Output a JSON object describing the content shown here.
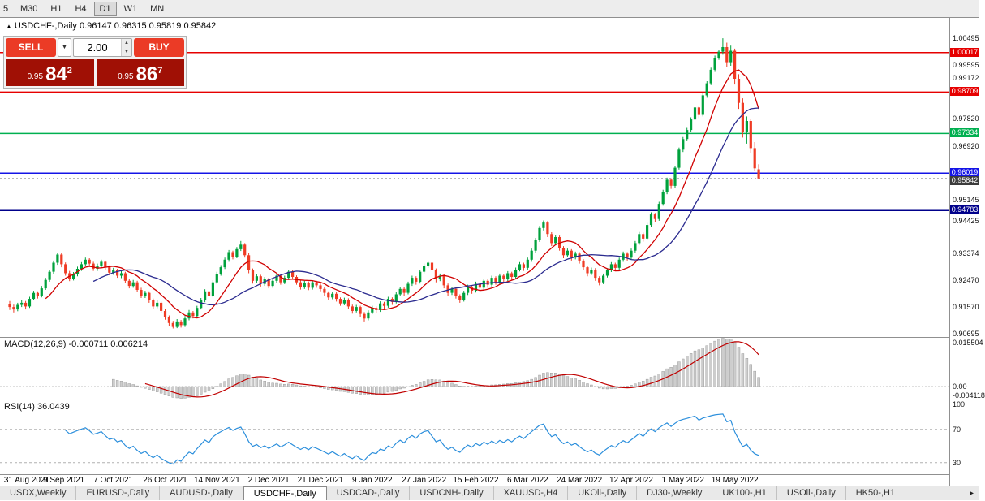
{
  "colors": {
    "candle_up": "#00a13c",
    "candle_down": "#ef3b24",
    "ma_fast": "#d00000",
    "ma_slow": "#2b2b8f",
    "macd_hist": "#cdcdcd",
    "macd_hist_stroke": "#8f8f8f",
    "macd_signal": "#c00000",
    "rsi_line": "#2c8fdc",
    "current_price_bg": "#3c3c3c",
    "button_red": "#eb3b26",
    "price_box_red": "#a01005"
  },
  "toolbar": {
    "timeframes": [
      {
        "label": "5",
        "active": false
      },
      {
        "label": "M30",
        "active": false
      },
      {
        "label": "H1",
        "active": false
      },
      {
        "label": "H4",
        "active": false
      },
      {
        "label": "D1",
        "active": true
      },
      {
        "label": "W1",
        "active": false
      },
      {
        "label": "MN",
        "active": false
      }
    ]
  },
  "chart": {
    "symbol": "USDCHF-,Daily",
    "ohlc": "0.96147 0.96315 0.95819 0.95842",
    "marker": "▲"
  },
  "trade_panel": {
    "sell_label": "SELL",
    "buy_label": "BUY",
    "lot": "2.00",
    "dropdown_arrow": "▼",
    "spin_up": "▲",
    "spin_down": "▼",
    "sell_price": {
      "prefix": "0.95",
      "big": "84",
      "sup": "2"
    },
    "buy_price": {
      "prefix": "0.95",
      "big": "86",
      "sup": "7"
    }
  },
  "price_axis": {
    "scale": [
      "1.00495",
      "0.99595",
      "0.99172",
      "0.97820",
      "0.96920",
      "0.95145",
      "0.94425",
      "0.93374",
      "0.92470",
      "0.91570",
      "0.90695"
    ],
    "current": {
      "label": "0.95842",
      "value": 0.95842
    }
  },
  "hlines": [
    {
      "value": 1.00017,
      "label": "1.00017",
      "color": "#e60000"
    },
    {
      "value": 0.98709,
      "label": "0.98709",
      "color": "#e60000"
    },
    {
      "value": 0.97334,
      "label": "0.97334",
      "color": "#00b050"
    },
    {
      "value": 0.96019,
      "label": "0.96019",
      "color": "#1414e6"
    },
    {
      "value": 0.94783,
      "label": "0.94783",
      "color": "#00008b"
    }
  ],
  "macd": {
    "name": "MACD(12,26,9)",
    "values": "-0.000711 0.006214",
    "fast": 12,
    "slow": 26,
    "signal": 9,
    "range": [
      -0.0045,
      0.016
    ],
    "axis_labels": [
      {
        "text": "0.015504",
        "value": 0.015504
      },
      {
        "text": "0.00",
        "value": 0
      },
      {
        "text": "-0.004118",
        "value": -0.004118
      }
    ]
  },
  "rsi": {
    "name": "RSI(14)",
    "value_text": "36.0439",
    "period": 14,
    "range": [
      15,
      105
    ],
    "levels": [
      70,
      30
    ],
    "axis_labels": [
      {
        "text": "100",
        "value": 100
      },
      {
        "text": "70",
        "value": 70
      },
      {
        "text": "30",
        "value": 30
      }
    ]
  },
  "tabs": [
    {
      "label": "USDX,Weekly",
      "active": false
    },
    {
      "label": "EURUSD-,Daily",
      "active": false
    },
    {
      "label": "AUDUSD-,Daily",
      "active": false
    },
    {
      "label": "USDCHF-,Daily",
      "active": true
    },
    {
      "label": "USDCAD-,Daily",
      "active": false
    },
    {
      "label": "USDCNH-,Daily",
      "active": false
    },
    {
      "label": "XAUUSD-,H4",
      "active": false
    },
    {
      "label": "UKOil-,Daily",
      "active": false
    },
    {
      "label": "DJ30-,Weekly",
      "active": false
    },
    {
      "label": "UK100-,H1",
      "active": false
    },
    {
      "label": "USOil-,Daily",
      "active": false
    },
    {
      "label": "HK50-,H1",
      "active": false
    }
  ],
  "tab_scroll_arrow": "▸",
  "chart_data": {
    "type": "candlestick",
    "title": "USDCHF-,Daily",
    "ylim": [
      0.9056,
      1.0117
    ],
    "ma_periods": [
      10,
      22
    ],
    "x_labels": [
      "31 Aug 2021",
      "19 Sep 2021",
      "7 Oct 2021",
      "26 Oct 2021",
      "14 Nov 2021",
      "2 Dec 2021",
      "21 Dec 2021",
      "9 Jan 2022",
      "27 Jan 2022",
      "15 Feb 2022",
      "6 Mar 2022",
      "24 Mar 2022",
      "12 Apr 2022",
      "1 May 2022",
      "19 May 2022"
    ],
    "x_label_indices": [
      0,
      13,
      26,
      39,
      52,
      65,
      78,
      91,
      104,
      117,
      130,
      143,
      156,
      169,
      182
    ],
    "candles": [
      [
        0.9168,
        0.9178,
        0.9148,
        0.9158
      ],
      [
        0.9158,
        0.9166,
        0.914,
        0.915
      ],
      [
        0.915,
        0.9172,
        0.9144,
        0.9165
      ],
      [
        0.9165,
        0.918,
        0.9158,
        0.9172
      ],
      [
        0.9172,
        0.9178,
        0.915,
        0.916
      ],
      [
        0.916,
        0.9192,
        0.9155,
        0.9185
      ],
      [
        0.9185,
        0.9212,
        0.918,
        0.9205
      ],
      [
        0.9205,
        0.921,
        0.9186,
        0.9195
      ],
      [
        0.9195,
        0.9228,
        0.919,
        0.922
      ],
      [
        0.922,
        0.9255,
        0.9215,
        0.9248
      ],
      [
        0.9248,
        0.9282,
        0.9242,
        0.9275
      ],
      [
        0.9275,
        0.9312,
        0.9268,
        0.9305
      ],
      [
        0.9305,
        0.9337,
        0.9298,
        0.9332
      ],
      [
        0.9332,
        0.9336,
        0.929,
        0.93
      ],
      [
        0.93,
        0.9306,
        0.9262,
        0.927
      ],
      [
        0.927,
        0.9278,
        0.9244,
        0.9252
      ],
      [
        0.9252,
        0.9274,
        0.9246,
        0.9268
      ],
      [
        0.9268,
        0.9292,
        0.926,
        0.9285
      ],
      [
        0.9285,
        0.9307,
        0.9278,
        0.93
      ],
      [
        0.93,
        0.9322,
        0.9294,
        0.9315
      ],
      [
        0.9315,
        0.932,
        0.9295,
        0.9302
      ],
      [
        0.9302,
        0.9308,
        0.9278,
        0.9285
      ],
      [
        0.9285,
        0.9302,
        0.9278,
        0.9295
      ],
      [
        0.9295,
        0.9315,
        0.9288,
        0.9308
      ],
      [
        0.9308,
        0.9312,
        0.9282,
        0.929
      ],
      [
        0.929,
        0.9296,
        0.9264,
        0.9272
      ],
      [
        0.9272,
        0.9288,
        0.9265,
        0.928
      ],
      [
        0.928,
        0.9285,
        0.9255,
        0.9262
      ],
      [
        0.9262,
        0.9278,
        0.9254,
        0.927
      ],
      [
        0.927,
        0.9275,
        0.9238,
        0.9245
      ],
      [
        0.9245,
        0.9252,
        0.922,
        0.9228
      ],
      [
        0.9228,
        0.9248,
        0.9222,
        0.924
      ],
      [
        0.924,
        0.9245,
        0.9208,
        0.9215
      ],
      [
        0.9215,
        0.9222,
        0.9188,
        0.9195
      ],
      [
        0.9195,
        0.9212,
        0.9188,
        0.9205
      ],
      [
        0.9205,
        0.921,
        0.9172,
        0.918
      ],
      [
        0.918,
        0.9186,
        0.9152,
        0.916
      ],
      [
        0.916,
        0.918,
        0.9154,
        0.9172
      ],
      [
        0.9172,
        0.9176,
        0.9138,
        0.9145
      ],
      [
        0.9145,
        0.9152,
        0.9116,
        0.9125
      ],
      [
        0.9125,
        0.913,
        0.9096,
        0.9105
      ],
      [
        0.9105,
        0.9112,
        0.9087,
        0.9092
      ],
      [
        0.9092,
        0.9118,
        0.9088,
        0.911
      ],
      [
        0.911,
        0.9115,
        0.909,
        0.9098
      ],
      [
        0.9098,
        0.9128,
        0.9092,
        0.912
      ],
      [
        0.912,
        0.9148,
        0.9114,
        0.914
      ],
      [
        0.914,
        0.9145,
        0.912,
        0.9128
      ],
      [
        0.9128,
        0.9162,
        0.9122,
        0.9155
      ],
      [
        0.9155,
        0.9188,
        0.915,
        0.918
      ],
      [
        0.918,
        0.9217,
        0.9174,
        0.921
      ],
      [
        0.921,
        0.9216,
        0.9186,
        0.9195
      ],
      [
        0.9195,
        0.9247,
        0.919,
        0.924
      ],
      [
        0.924,
        0.9275,
        0.9235,
        0.9268
      ],
      [
        0.9268,
        0.9297,
        0.9262,
        0.929
      ],
      [
        0.929,
        0.9322,
        0.9284,
        0.9315
      ],
      [
        0.9315,
        0.9347,
        0.9308,
        0.934
      ],
      [
        0.934,
        0.9345,
        0.9316,
        0.9325
      ],
      [
        0.9325,
        0.9357,
        0.932,
        0.935
      ],
      [
        0.935,
        0.9377,
        0.9344,
        0.9365
      ],
      [
        0.9365,
        0.937,
        0.9322,
        0.933
      ],
      [
        0.933,
        0.9336,
        0.927,
        0.928
      ],
      [
        0.928,
        0.9286,
        0.9236,
        0.9245
      ],
      [
        0.9245,
        0.9268,
        0.9238,
        0.926
      ],
      [
        0.926,
        0.9265,
        0.9226,
        0.9235
      ],
      [
        0.9235,
        0.9258,
        0.9228,
        0.925
      ],
      [
        0.925,
        0.9255,
        0.922,
        0.9228
      ],
      [
        0.9228,
        0.9252,
        0.9222,
        0.9245
      ],
      [
        0.9245,
        0.9269,
        0.9238,
        0.9262
      ],
      [
        0.9262,
        0.9267,
        0.9232,
        0.924
      ],
      [
        0.924,
        0.9262,
        0.9234,
        0.9255
      ],
      [
        0.9255,
        0.9282,
        0.9248,
        0.9275
      ],
      [
        0.9275,
        0.928,
        0.925,
        0.9258
      ],
      [
        0.9258,
        0.9263,
        0.9232,
        0.924
      ],
      [
        0.924,
        0.9246,
        0.9216,
        0.9225
      ],
      [
        0.9225,
        0.9245,
        0.9218,
        0.9238
      ],
      [
        0.9238,
        0.9243,
        0.9214,
        0.9222
      ],
      [
        0.9222,
        0.9247,
        0.9216,
        0.924
      ],
      [
        0.924,
        0.9245,
        0.9222,
        0.923
      ],
      [
        0.923,
        0.9236,
        0.921,
        0.9218
      ],
      [
        0.9218,
        0.9224,
        0.9196,
        0.9205
      ],
      [
        0.9205,
        0.921,
        0.9182,
        0.919
      ],
      [
        0.919,
        0.9209,
        0.9184,
        0.9202
      ],
      [
        0.9202,
        0.9207,
        0.9176,
        0.9185
      ],
      [
        0.9185,
        0.919,
        0.9162,
        0.917
      ],
      [
        0.917,
        0.9189,
        0.9164,
        0.9182
      ],
      [
        0.9182,
        0.9187,
        0.9152,
        0.916
      ],
      [
        0.916,
        0.9166,
        0.9136,
        0.9145
      ],
      [
        0.9145,
        0.9165,
        0.914,
        0.9158
      ],
      [
        0.9158,
        0.9162,
        0.9126,
        0.9135
      ],
      [
        0.9135,
        0.9141,
        0.911,
        0.912
      ],
      [
        0.912,
        0.9147,
        0.9114,
        0.914
      ],
      [
        0.914,
        0.9162,
        0.9134,
        0.9155
      ],
      [
        0.9155,
        0.916,
        0.9138,
        0.9148
      ],
      [
        0.9148,
        0.9177,
        0.9142,
        0.917
      ],
      [
        0.917,
        0.9175,
        0.9152,
        0.9162
      ],
      [
        0.9162,
        0.9192,
        0.9156,
        0.9185
      ],
      [
        0.9185,
        0.919,
        0.9165,
        0.9175
      ],
      [
        0.9175,
        0.9207,
        0.917,
        0.92
      ],
      [
        0.92,
        0.9225,
        0.9194,
        0.9218
      ],
      [
        0.9218,
        0.9223,
        0.9196,
        0.9205
      ],
      [
        0.9205,
        0.9242,
        0.92,
        0.9235
      ],
      [
        0.9235,
        0.9262,
        0.9228,
        0.9255
      ],
      [
        0.9255,
        0.926,
        0.9232,
        0.9242
      ],
      [
        0.9242,
        0.9282,
        0.9236,
        0.9275
      ],
      [
        0.9275,
        0.9302,
        0.927,
        0.9295
      ],
      [
        0.9295,
        0.9312,
        0.9288,
        0.9305
      ],
      [
        0.9305,
        0.931,
        0.927,
        0.928
      ],
      [
        0.928,
        0.9286,
        0.924,
        0.925
      ],
      [
        0.925,
        0.9269,
        0.9244,
        0.9262
      ],
      [
        0.9262,
        0.9267,
        0.922,
        0.923
      ],
      [
        0.923,
        0.9236,
        0.9196,
        0.9205
      ],
      [
        0.9205,
        0.9225,
        0.9198,
        0.9218
      ],
      [
        0.9218,
        0.9223,
        0.9186,
        0.9195
      ],
      [
        0.9195,
        0.92,
        0.9172,
        0.9182
      ],
      [
        0.9182,
        0.9212,
        0.9176,
        0.9205
      ],
      [
        0.9205,
        0.9232,
        0.9198,
        0.9225
      ],
      [
        0.9225,
        0.923,
        0.9202,
        0.9212
      ],
      [
        0.9212,
        0.9242,
        0.9206,
        0.9235
      ],
      [
        0.9235,
        0.924,
        0.9212,
        0.9222
      ],
      [
        0.9222,
        0.9252,
        0.9216,
        0.9245
      ],
      [
        0.9245,
        0.925,
        0.9222,
        0.9232
      ],
      [
        0.9232,
        0.9262,
        0.9226,
        0.9255
      ],
      [
        0.9255,
        0.926,
        0.9232,
        0.924
      ],
      [
        0.924,
        0.9269,
        0.9234,
        0.9262
      ],
      [
        0.9262,
        0.9267,
        0.924,
        0.925
      ],
      [
        0.925,
        0.9277,
        0.9244,
        0.927
      ],
      [
        0.927,
        0.9275,
        0.9248,
        0.9258
      ],
      [
        0.9258,
        0.9289,
        0.9252,
        0.9282
      ],
      [
        0.9282,
        0.9307,
        0.9276,
        0.93
      ],
      [
        0.93,
        0.9305,
        0.9278,
        0.9288
      ],
      [
        0.9288,
        0.9322,
        0.9282,
        0.9315
      ],
      [
        0.9315,
        0.9352,
        0.9308,
        0.9345
      ],
      [
        0.9345,
        0.9387,
        0.9338,
        0.938
      ],
      [
        0.938,
        0.9427,
        0.9374,
        0.942
      ],
      [
        0.942,
        0.9445,
        0.9412,
        0.9438
      ],
      [
        0.9438,
        0.9443,
        0.939,
        0.94
      ],
      [
        0.94,
        0.9406,
        0.936,
        0.937
      ],
      [
        0.937,
        0.9397,
        0.9364,
        0.939
      ],
      [
        0.939,
        0.9395,
        0.9345,
        0.9355
      ],
      [
        0.9355,
        0.936,
        0.932,
        0.933
      ],
      [
        0.933,
        0.9352,
        0.9324,
        0.9345
      ],
      [
        0.9345,
        0.935,
        0.9312,
        0.9322
      ],
      [
        0.9322,
        0.9342,
        0.9316,
        0.9335
      ],
      [
        0.9335,
        0.934,
        0.9302,
        0.9312
      ],
      [
        0.9312,
        0.9317,
        0.928,
        0.929
      ],
      [
        0.929,
        0.9295,
        0.926,
        0.927
      ],
      [
        0.927,
        0.9289,
        0.9264,
        0.9282
      ],
      [
        0.9282,
        0.9287,
        0.9245,
        0.9255
      ],
      [
        0.9255,
        0.926,
        0.923,
        0.924
      ],
      [
        0.924,
        0.9269,
        0.9234,
        0.9262
      ],
      [
        0.9262,
        0.9287,
        0.9256,
        0.928
      ],
      [
        0.928,
        0.9307,
        0.9274,
        0.93
      ],
      [
        0.93,
        0.9305,
        0.9278,
        0.9288
      ],
      [
        0.9288,
        0.9322,
        0.9282,
        0.9315
      ],
      [
        0.9315,
        0.9342,
        0.9308,
        0.9335
      ],
      [
        0.9335,
        0.934,
        0.9312,
        0.9322
      ],
      [
        0.9322,
        0.9352,
        0.9316,
        0.9345
      ],
      [
        0.9345,
        0.9377,
        0.9338,
        0.937
      ],
      [
        0.937,
        0.9407,
        0.9364,
        0.94
      ],
      [
        0.94,
        0.9405,
        0.9375,
        0.9385
      ],
      [
        0.9385,
        0.9437,
        0.938,
        0.943
      ],
      [
        0.943,
        0.9472,
        0.9424,
        0.9465
      ],
      [
        0.9465,
        0.947,
        0.944,
        0.945
      ],
      [
        0.945,
        0.9507,
        0.9444,
        0.95
      ],
      [
        0.95,
        0.9547,
        0.9494,
        0.954
      ],
      [
        0.954,
        0.9587,
        0.9532,
        0.958
      ],
      [
        0.958,
        0.9585,
        0.955,
        0.956
      ],
      [
        0.956,
        0.9627,
        0.9554,
        0.962
      ],
      [
        0.962,
        0.9687,
        0.9614,
        0.968
      ],
      [
        0.968,
        0.9722,
        0.9672,
        0.9715
      ],
      [
        0.9715,
        0.9752,
        0.9708,
        0.9745
      ],
      [
        0.9745,
        0.9787,
        0.9738,
        0.978
      ],
      [
        0.978,
        0.9827,
        0.9774,
        0.982
      ],
      [
        0.982,
        0.9825,
        0.9785,
        0.9795
      ],
      [
        0.9795,
        0.9867,
        0.979,
        0.986
      ],
      [
        0.986,
        0.9907,
        0.9852,
        0.99
      ],
      [
        0.99,
        0.9952,
        0.9894,
        0.9945
      ],
      [
        0.9945,
        0.9992,
        0.9938,
        0.9985
      ],
      [
        0.9985,
        1.0012,
        0.9978,
        1.0005
      ],
      [
        1.0005,
        1.00495,
        0.9995,
        1.002
      ],
      [
        1.002,
        1.0035,
        0.9955,
        0.997
      ],
      [
        0.997,
        1.0025,
        0.9958,
        1.0008
      ],
      [
        1.0008,
        1.0015,
        0.9896,
        0.9915
      ],
      [
        0.9915,
        0.993,
        0.9815,
        0.9835
      ],
      [
        0.9835,
        0.985,
        0.972,
        0.974
      ],
      [
        0.974,
        0.979,
        0.97,
        0.9775
      ],
      [
        0.9775,
        0.9782,
        0.9668,
        0.9685
      ],
      [
        0.9685,
        0.9705,
        0.9608,
        0.9618
      ],
      [
        0.96147,
        0.96315,
        0.95819,
        0.95842
      ]
    ]
  }
}
